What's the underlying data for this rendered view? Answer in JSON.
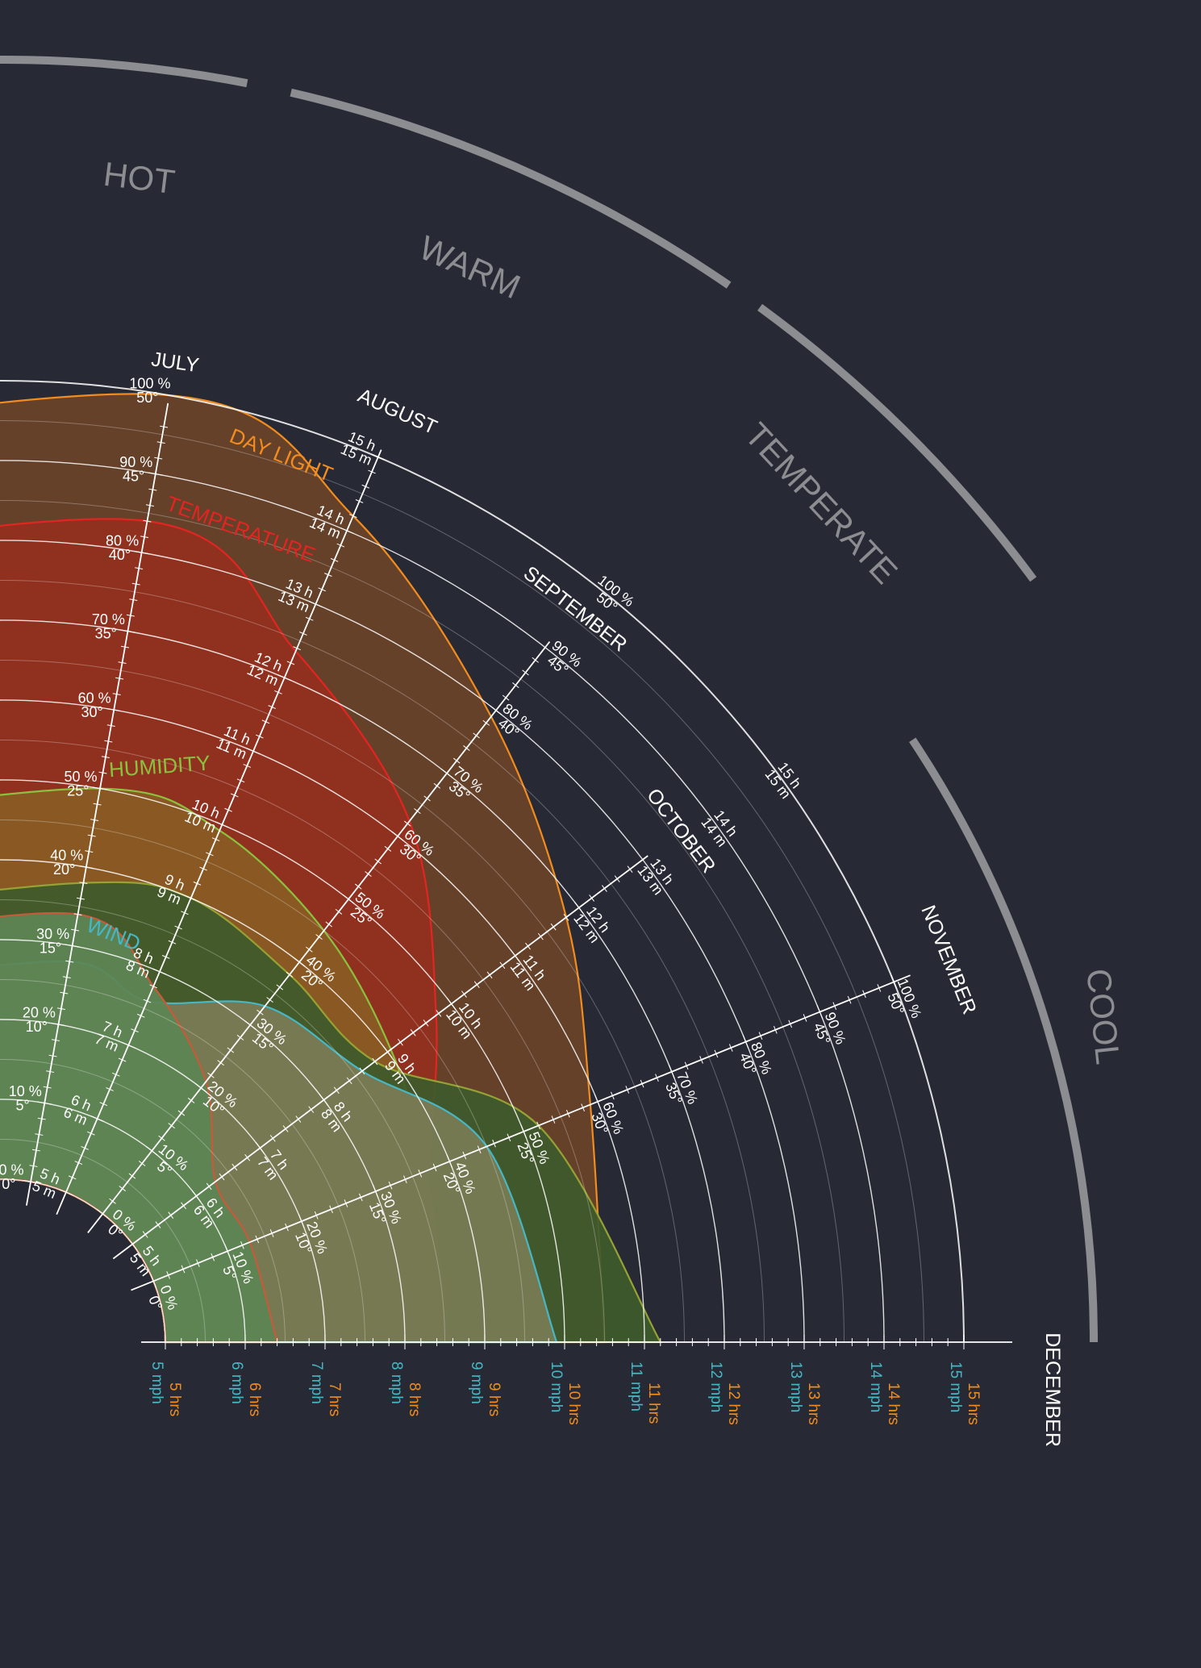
{
  "chart_data": {
    "type": "area",
    "title": "",
    "seasons": [
      {
        "label": "HOT",
        "from": "JULY",
        "to": "AUGUST"
      },
      {
        "label": "WARM",
        "from": "AUGUST",
        "to": "SEPTEMBER"
      },
      {
        "label": "TEMPERATE",
        "from": "SEPTEMBER",
        "to": "OCTOBER"
      },
      {
        "label": "COOL",
        "from": "NOVEMBER",
        "to": "DECEMBER"
      }
    ],
    "months": [
      "JULY",
      "AUGUST",
      "SEPTEMBER",
      "OCTOBER",
      "NOVEMBER",
      "DECEMBER"
    ],
    "scales": {
      "percent": [
        "0 %",
        "10 %",
        "20 %",
        "30 %",
        "40 %",
        "50 %",
        "60 %",
        "70 %",
        "80 %",
        "90 %",
        "100 %"
      ],
      "degrees": [
        "0°",
        "5°",
        "10°",
        "15°",
        "20°",
        "25°",
        "30°",
        "35°",
        "40°",
        "45°",
        "50°"
      ],
      "hours": [
        "5 h",
        "6 h",
        "7 h",
        "8 h",
        "9 h",
        "10 h",
        "11 h",
        "12 h",
        "13 h",
        "14 h",
        "15 h"
      ],
      "minutes": [
        "5 m",
        "6 m",
        "7 m",
        "8 m",
        "9 m",
        "10 m",
        "11 m",
        "12 m",
        "13 m",
        "14 m",
        "15 m"
      ],
      "hrs": [
        "5 hrs",
        "6 hrs",
        "7 hrs",
        "8 hrs",
        "9 hrs",
        "10 hrs",
        "11 hrs",
        "12 hrs",
        "13 hrs",
        "14 hrs",
        "15 hrs"
      ],
      "mph": [
        "5 mph",
        "6 mph",
        "7 mph",
        "8 mph",
        "9 mph",
        "10 mph",
        "11 mph",
        "12 mph",
        "13 mph",
        "14 mph",
        "15 mph"
      ]
    },
    "series": [
      {
        "name": "DAY LIGHT",
        "unit": "hrs",
        "color": "#f28c1e",
        "fill": "#6a432a",
        "values": [
          15.0,
          14.2,
          12.9,
          11.8,
          10.9,
          10.5
        ]
      },
      {
        "name": "TEMPERATURE",
        "unit": "°",
        "color": "#e42421",
        "fill": "#93301f",
        "values": [
          42.0,
          36.8,
          31.2,
          23.8,
          18.6,
          16.3
        ]
      },
      {
        "name": "HUMIDITY",
        "unit": "%",
        "color": "#8cc13f",
        "fill": "#8a5d23",
        "values": [
          50.0,
          49.2,
          45.0,
          40.5,
          36.8,
          35.6
        ]
      },
      {
        "name": "",
        "unit": "hrs",
        "color": "#96a234",
        "fill": "#3e5a2c",
        "values": [
          8.8,
          9.0,
          8.8,
          8.8,
          10.2,
          11.2
        ]
      },
      {
        "name": "WIND",
        "unit": "mph",
        "color": "#46b7c5",
        "fill": "#7a7c55",
        "values": [
          7.8,
          7.6,
          8.3,
          8.6,
          9.5,
          9.9
        ]
      },
      {
        "name": "",
        "unit": "hrs",
        "color": "#c85a3a",
        "fill": "#5e8554",
        "values": [
          8.4,
          7.8,
          7.1,
          6.3,
          6.3,
          6.4
        ]
      }
    ],
    "colors": {
      "background": "#272a35",
      "axis": "#ffffff",
      "season_arc": "#8c8d91",
      "hrs_label": "#f28c1e",
      "mph_label": "#46b7c5"
    },
    "grid": true,
    "legend": "labels on curves"
  }
}
